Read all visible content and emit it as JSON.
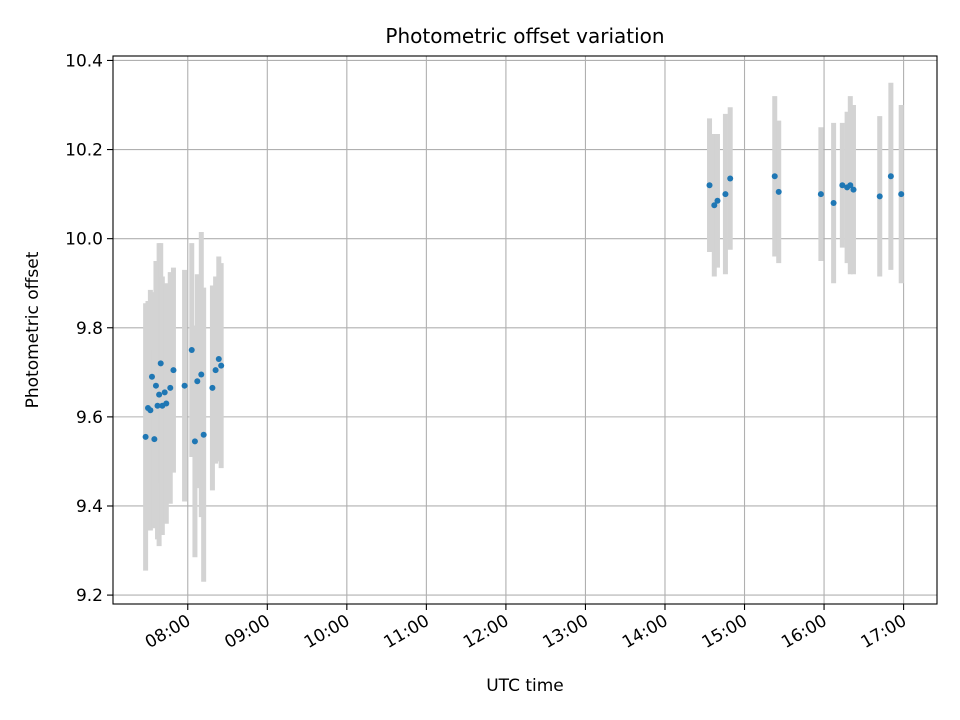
{
  "chart_data": {
    "type": "scatter",
    "title": "Photometric offset variation",
    "xlabel": "UTC time",
    "ylabel": "Photometric offset",
    "x_tick_labels": [
      "08:00",
      "09:00",
      "10:00",
      "11:00",
      "12:00",
      "13:00",
      "14:00",
      "15:00",
      "16:00",
      "17:00"
    ],
    "x_ticks_hours": [
      8,
      9,
      10,
      11,
      12,
      13,
      14,
      15,
      16,
      17
    ],
    "xlim_hours": [
      7.06,
      17.42
    ],
    "y_tick_labels": [
      "9.2",
      "9.4",
      "9.6",
      "9.8",
      "10.0",
      "10.2",
      "10.4"
    ],
    "y_ticks": [
      9.2,
      9.4,
      9.6,
      9.8,
      10.0,
      10.2,
      10.4
    ],
    "ylim": [
      9.18,
      10.41
    ],
    "grid": true,
    "colors": {
      "points": "#1f77b4",
      "errorbars": "#d3d3d3",
      "grid": "#b0b0b0"
    },
    "series": [
      {
        "x_hours": [
          7.47,
          7.5,
          7.53,
          7.55,
          7.58,
          7.6,
          7.62,
          7.64,
          7.66,
          7.68,
          7.71,
          7.73,
          7.78,
          7.82,
          7.96,
          8.05,
          8.09,
          8.12,
          8.17,
          8.2,
          8.31,
          8.35,
          8.39,
          8.42
        ],
        "y": [
          9.555,
          9.62,
          9.615,
          9.69,
          9.55,
          9.67,
          9.625,
          9.65,
          9.72,
          9.625,
          9.655,
          9.63,
          9.665,
          9.705,
          9.67,
          9.75,
          9.545,
          9.68,
          9.695,
          9.56,
          9.665,
          9.705,
          9.73,
          9.715
        ],
        "yerr": [
          0.3,
          0.24,
          0.27,
          0.19,
          0.2,
          0.28,
          0.3,
          0.34,
          0.27,
          0.29,
          0.24,
          0.27,
          0.26,
          0.23,
          0.26,
          0.24,
          0.26,
          0.24,
          0.32,
          0.33,
          0.23,
          0.21,
          0.23,
          0.23
        ]
      },
      {
        "x_hours": [
          14.56,
          14.62,
          14.66,
          14.76,
          14.82,
          15.38,
          15.43,
          15.96,
          16.12,
          16.23,
          16.29,
          16.33,
          16.37,
          16.7,
          16.84,
          16.97
        ],
        "y": [
          10.12,
          10.075,
          10.085,
          10.1,
          10.135,
          10.14,
          10.105,
          10.1,
          10.08,
          10.12,
          10.115,
          10.12,
          10.11,
          10.095,
          10.14,
          10.1
        ],
        "yerr": [
          0.15,
          0.16,
          0.15,
          0.18,
          0.16,
          0.18,
          0.16,
          0.15,
          0.18,
          0.14,
          0.17,
          0.2,
          0.19,
          0.18,
          0.21,
          0.2
        ]
      }
    ]
  }
}
